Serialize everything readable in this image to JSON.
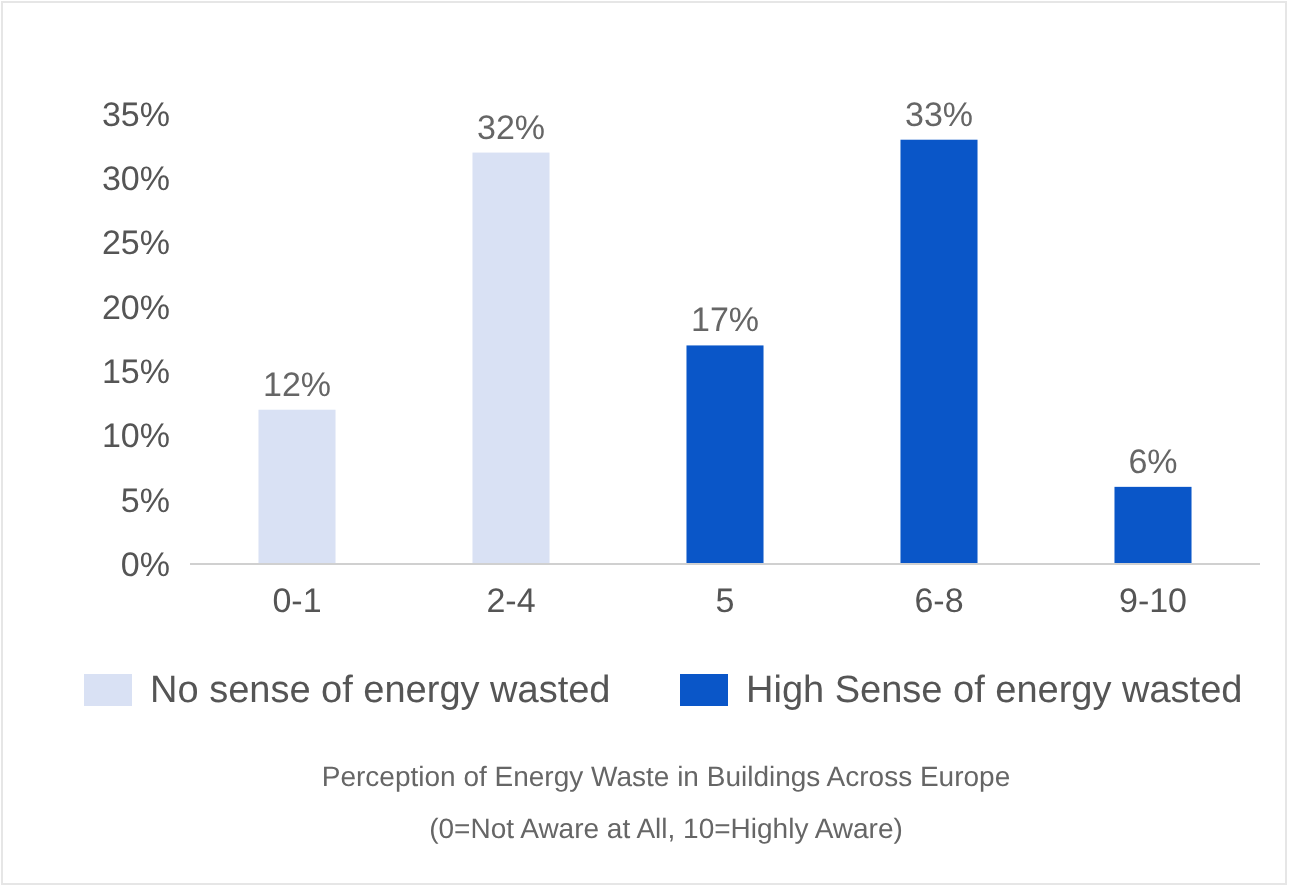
{
  "chart_data": {
    "type": "bar",
    "title": "Perception of Energy Waste in Buildings Across Europe",
    "subtitle": "(0=Not Aware at All, 10=Highly Aware)",
    "categories": [
      "0-1",
      "2-4",
      "5",
      "6-8",
      "9-10"
    ],
    "series": [
      {
        "name": "No sense of energy wasted",
        "color": "#d9e1f4",
        "values": [
          12,
          32,
          null,
          null,
          null
        ],
        "value_labels": [
          "12%",
          "32%",
          null,
          null,
          null
        ]
      },
      {
        "name": "High Sense of energy wasted",
        "color": "#0a56c8",
        "values": [
          null,
          null,
          17,
          33,
          6
        ],
        "value_labels": [
          null,
          null,
          "17%",
          "33%",
          "6%"
        ]
      }
    ],
    "ylim": [
      0,
      35
    ],
    "yticks": [
      {
        "value": 0,
        "label": "0%"
      },
      {
        "value": 5,
        "label": "5%"
      },
      {
        "value": 10,
        "label": "10%"
      },
      {
        "value": 15,
        "label": "15%"
      },
      {
        "value": 20,
        "label": "20%"
      },
      {
        "value": 25,
        "label": "25%"
      },
      {
        "value": 30,
        "label": "30%"
      },
      {
        "value": 35,
        "label": "35%"
      }
    ],
    "legend": "bottom"
  }
}
